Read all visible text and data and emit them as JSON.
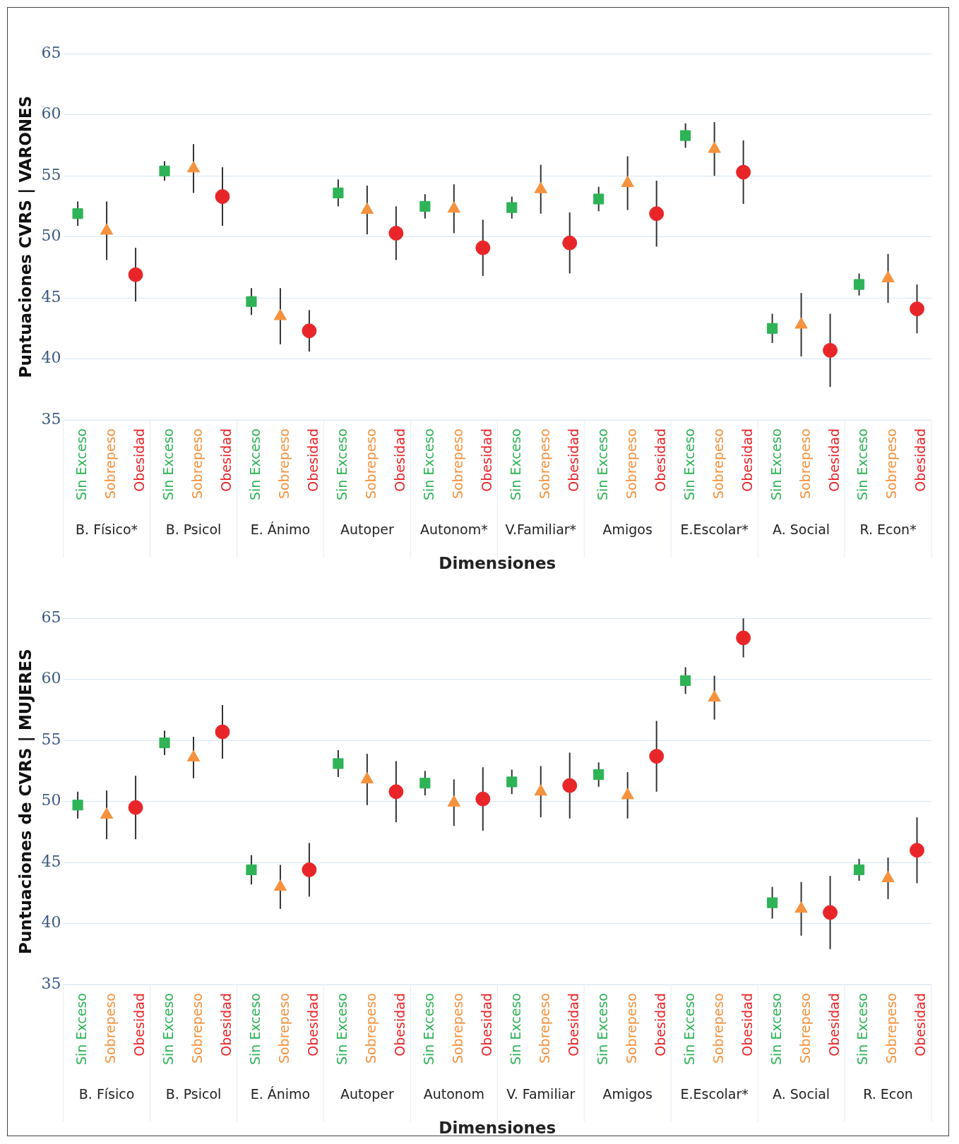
{
  "chart_data": [
    {
      "type": "scatter",
      "ylabel": "Puntuaciones CVRS | VARONES",
      "xlabel": "Dimensiones",
      "categories": [
        "B. Físico*",
        "B. Psicol",
        "E. Ánimo",
        "Autoper",
        "Autonom*",
        "V.Familiar*",
        "Amigos",
        "E.Escolar*",
        "A. Social",
        "R. Econ*"
      ],
      "ylim": [
        35,
        65
      ],
      "yticks": [
        35,
        40,
        45,
        50,
        55,
        60,
        65
      ],
      "grid": "y",
      "legend": false,
      "series": [
        {
          "name": "Sin Exceso",
          "color": "#2eb356",
          "marker": "square",
          "values": [
            51.9,
            55.4,
            44.7,
            53.6,
            52.5,
            52.4,
            53.1,
            58.3,
            42.5,
            46.1
          ],
          "errors": [
            1.0,
            0.8,
            1.1,
            1.1,
            1.0,
            0.9,
            1.0,
            1.0,
            1.2,
            0.9
          ]
        },
        {
          "name": "Sobrepeso",
          "color": "#f5923e",
          "marker": "triangle",
          "values": [
            50.5,
            55.6,
            43.5,
            52.2,
            52.3,
            53.9,
            54.4,
            57.2,
            42.8,
            46.6
          ],
          "errors": [
            2.4,
            2.0,
            2.3,
            2.0,
            2.0,
            2.0,
            2.2,
            2.2,
            2.6,
            2.0
          ]
        },
        {
          "name": "Obesidad",
          "color": "#e8262a",
          "marker": "circle",
          "values": [
            46.9,
            53.3,
            42.3,
            50.3,
            49.1,
            49.5,
            51.9,
            55.3,
            40.7,
            44.1
          ],
          "errors": [
            2.2,
            2.4,
            1.7,
            2.2,
            2.3,
            2.5,
            2.7,
            2.6,
            3.0,
            2.0
          ]
        }
      ]
    },
    {
      "type": "scatter",
      "ylabel": "Puntuaciones de CVRS | MUJERES",
      "xlabel": "Dimensiones",
      "categories": [
        "B. Físico",
        "B. Psicol",
        "E. Ánimo",
        "Autoper",
        "Autonom",
        "V. Familiar",
        "Amigos",
        "E.Escolar*",
        "A. Social",
        "R. Econ"
      ],
      "ylim": [
        35,
        65
      ],
      "yticks": [
        35,
        40,
        45,
        50,
        55,
        60,
        65
      ],
      "grid": "y",
      "legend": false,
      "series": [
        {
          "name": "Sin Exceso",
          "color": "#2eb356",
          "marker": "square",
          "values": [
            49.7,
            54.8,
            44.4,
            53.1,
            51.5,
            51.6,
            52.2,
            59.9,
            41.7,
            44.4
          ],
          "errors": [
            1.1,
            1.0,
            1.2,
            1.1,
            1.0,
            1.0,
            1.0,
            1.1,
            1.3,
            0.9
          ]
        },
        {
          "name": "Sobrepeso",
          "color": "#f5923e",
          "marker": "triangle",
          "values": [
            48.9,
            53.6,
            43.0,
            51.8,
            49.9,
            50.8,
            50.5,
            58.5,
            41.2,
            43.7
          ],
          "errors": [
            2.0,
            1.7,
            1.8,
            2.1,
            1.9,
            2.1,
            1.9,
            1.8,
            2.2,
            1.7
          ]
        },
        {
          "name": "Obesidad",
          "color": "#e8262a",
          "marker": "circle",
          "values": [
            49.5,
            55.7,
            44.4,
            50.8,
            50.2,
            51.3,
            53.7,
            63.4,
            40.9,
            46.0
          ],
          "errors": [
            2.6,
            2.2,
            2.2,
            2.5,
            2.6,
            2.7,
            2.9,
            1.6,
            3.0,
            2.7
          ]
        }
      ]
    }
  ]
}
